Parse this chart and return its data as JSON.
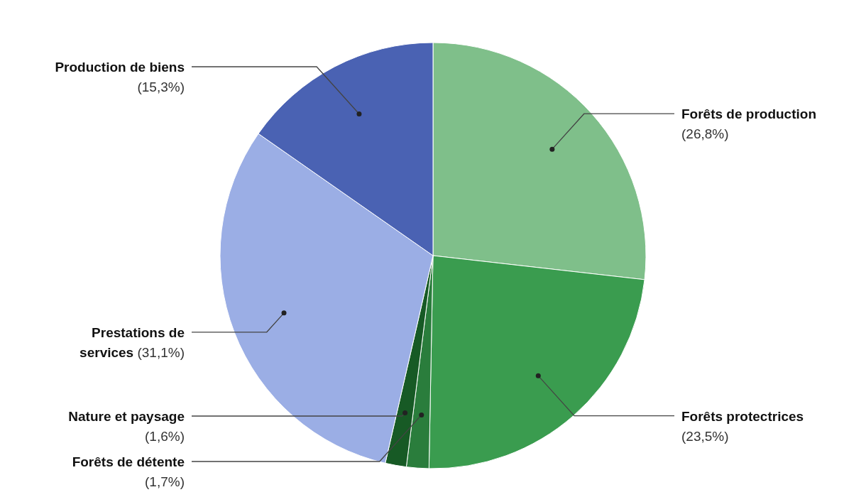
{
  "chart_data": {
    "type": "pie",
    "categories": [
      "Forêts de production",
      "Forêts protectrices",
      "Forêts de détente",
      "Nature et paysage",
      "Prestations de services",
      "Production de biens"
    ],
    "values": [
      26.8,
      23.5,
      1.7,
      1.6,
      31.1,
      15.3
    ],
    "value_labels": [
      "(26,8%)",
      "(23,5%)",
      "(1,7%)",
      "(1,6%)",
      "(31,1%)",
      "(15,3%)"
    ],
    "colors": [
      "#7fbf8a",
      "#3a9c4f",
      "#2a7d3c",
      "#175a25",
      "#9baee5",
      "#4a62b3"
    ],
    "legend": false
  }
}
